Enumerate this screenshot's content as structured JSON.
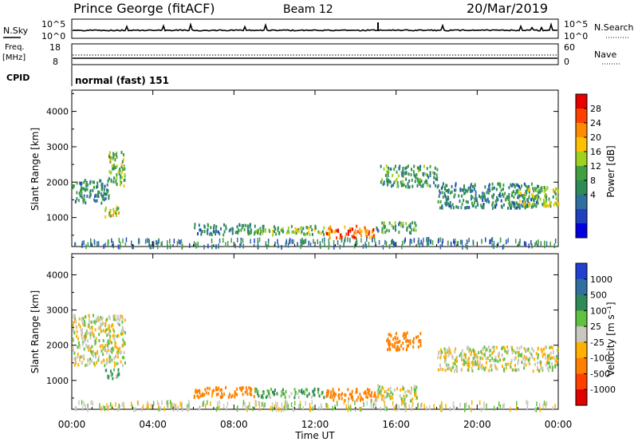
{
  "header": {
    "station": "Prince George (fitACF)",
    "beam": "Beam 12",
    "date": "20/Mar/2019"
  },
  "sky_panel": {
    "left_label": "N.Sky",
    "right_label": "N.Search",
    "left_ticks": [
      "10^5",
      "10^0"
    ],
    "right_ticks": [
      "10^5",
      "10^0"
    ]
  },
  "freq_panel": {
    "left_label_1": "Freq.",
    "left_label_2": "[MHz]",
    "right_label": "Nave",
    "left_ticks": [
      "18",
      "8"
    ],
    "right_ticks": [
      "60",
      "0"
    ]
  },
  "cpid_panel": {
    "label": "CPID",
    "mode_text": "normal (fast) 151"
  },
  "power_colorbar": {
    "label": "Power [dB]",
    "ticks": [
      "28",
      "24",
      "20",
      "16",
      "12",
      "8",
      "4"
    ],
    "colors": [
      "#e60000",
      "#ff4000",
      "#ff8c00",
      "#ffc000",
      "#a0d020",
      "#40a040",
      "#2e8b57",
      "#3070a0",
      "#2040c0",
      "#0000e0"
    ]
  },
  "velocity_colorbar": {
    "label": "Velocity [m s⁻¹]",
    "ticks": [
      "1000",
      "500",
      "100",
      "25",
      "-25",
      "-100",
      "-500",
      "-1000"
    ],
    "colors": [
      "#2040d0",
      "#3070a0",
      "#2e8b57",
      "#60c040",
      "#c8c8c0",
      "#ffb000",
      "#ff8000",
      "#ff4000",
      "#e00000"
    ]
  },
  "x_axis": {
    "label": "Time UT",
    "ticks": [
      "00:00",
      "04:00",
      "08:00",
      "12:00",
      "16:00",
      "20:00",
      "00:00"
    ]
  },
  "y_axis": {
    "label": "Slant Range [km]",
    "ticks": [
      "4000",
      "3000",
      "2000",
      "1000"
    ]
  },
  "chart_data": [
    {
      "type": "heatmap",
      "title": "Power",
      "xlabel": "Time UT",
      "ylabel": "Slant Range [km]",
      "xlim": [
        0,
        24
      ],
      "ylim": [
        180,
        4600
      ],
      "colorbar_label": "Power [dB]",
      "colorbar_range": [
        0,
        30
      ],
      "regions": [
        {
          "t0": 0.0,
          "t1": 1.8,
          "r0": 1450,
          "r1": 2100,
          "value": 10
        },
        {
          "t0": 1.8,
          "t1": 2.6,
          "r0": 1900,
          "r1": 2900,
          "value": 14
        },
        {
          "t0": 1.6,
          "t1": 2.3,
          "r0": 1050,
          "r1": 1350,
          "value": 18
        },
        {
          "t0": 6.0,
          "t1": 9.0,
          "r0": 550,
          "r1": 850,
          "value": 10
        },
        {
          "t0": 9.0,
          "t1": 12.5,
          "r0": 550,
          "r1": 800,
          "value": 14
        },
        {
          "t0": 12.5,
          "t1": 15.0,
          "r0": 450,
          "r1": 800,
          "value": 24
        },
        {
          "t0": 15.0,
          "t1": 17.0,
          "r0": 600,
          "r1": 900,
          "value": 12
        },
        {
          "t0": 15.2,
          "t1": 18.0,
          "r0": 1900,
          "r1": 2500,
          "value": 12
        },
        {
          "t0": 18.0,
          "t1": 23.0,
          "r0": 1300,
          "r1": 2000,
          "value": 10
        },
        {
          "t0": 22.0,
          "t1": 24.0,
          "r0": 1350,
          "r1": 1900,
          "value": 16
        }
      ]
    },
    {
      "type": "heatmap",
      "title": "Velocity",
      "xlabel": "Time UT",
      "ylabel": "Slant Range [km]",
      "xlim": [
        0,
        24
      ],
      "ylim": [
        180,
        4600
      ],
      "colorbar_label": "Velocity [m s⁻¹]",
      "colorbar_range": [
        -1000,
        1000
      ],
      "regions": [
        {
          "t0": 0.0,
          "t1": 2.6,
          "r0": 1450,
          "r1": 2900,
          "value": 0
        },
        {
          "t0": 1.6,
          "t1": 2.3,
          "r0": 1050,
          "r1": 1350,
          "value": 60
        },
        {
          "t0": 6.0,
          "t1": 9.0,
          "r0": 550,
          "r1": 850,
          "value": -150
        },
        {
          "t0": 9.0,
          "t1": 12.5,
          "r0": 550,
          "r1": 800,
          "value": 50
        },
        {
          "t0": 12.5,
          "t1": 15.0,
          "r0": 450,
          "r1": 800,
          "value": -300
        },
        {
          "t0": 15.0,
          "t1": 17.0,
          "r0": 450,
          "r1": 900,
          "value": 0
        },
        {
          "t0": 15.5,
          "t1": 17.2,
          "r0": 1900,
          "r1": 2400,
          "value": -400
        },
        {
          "t0": 18.0,
          "t1": 24.0,
          "r0": 1300,
          "r1": 2000,
          "value": 0
        }
      ]
    }
  ]
}
